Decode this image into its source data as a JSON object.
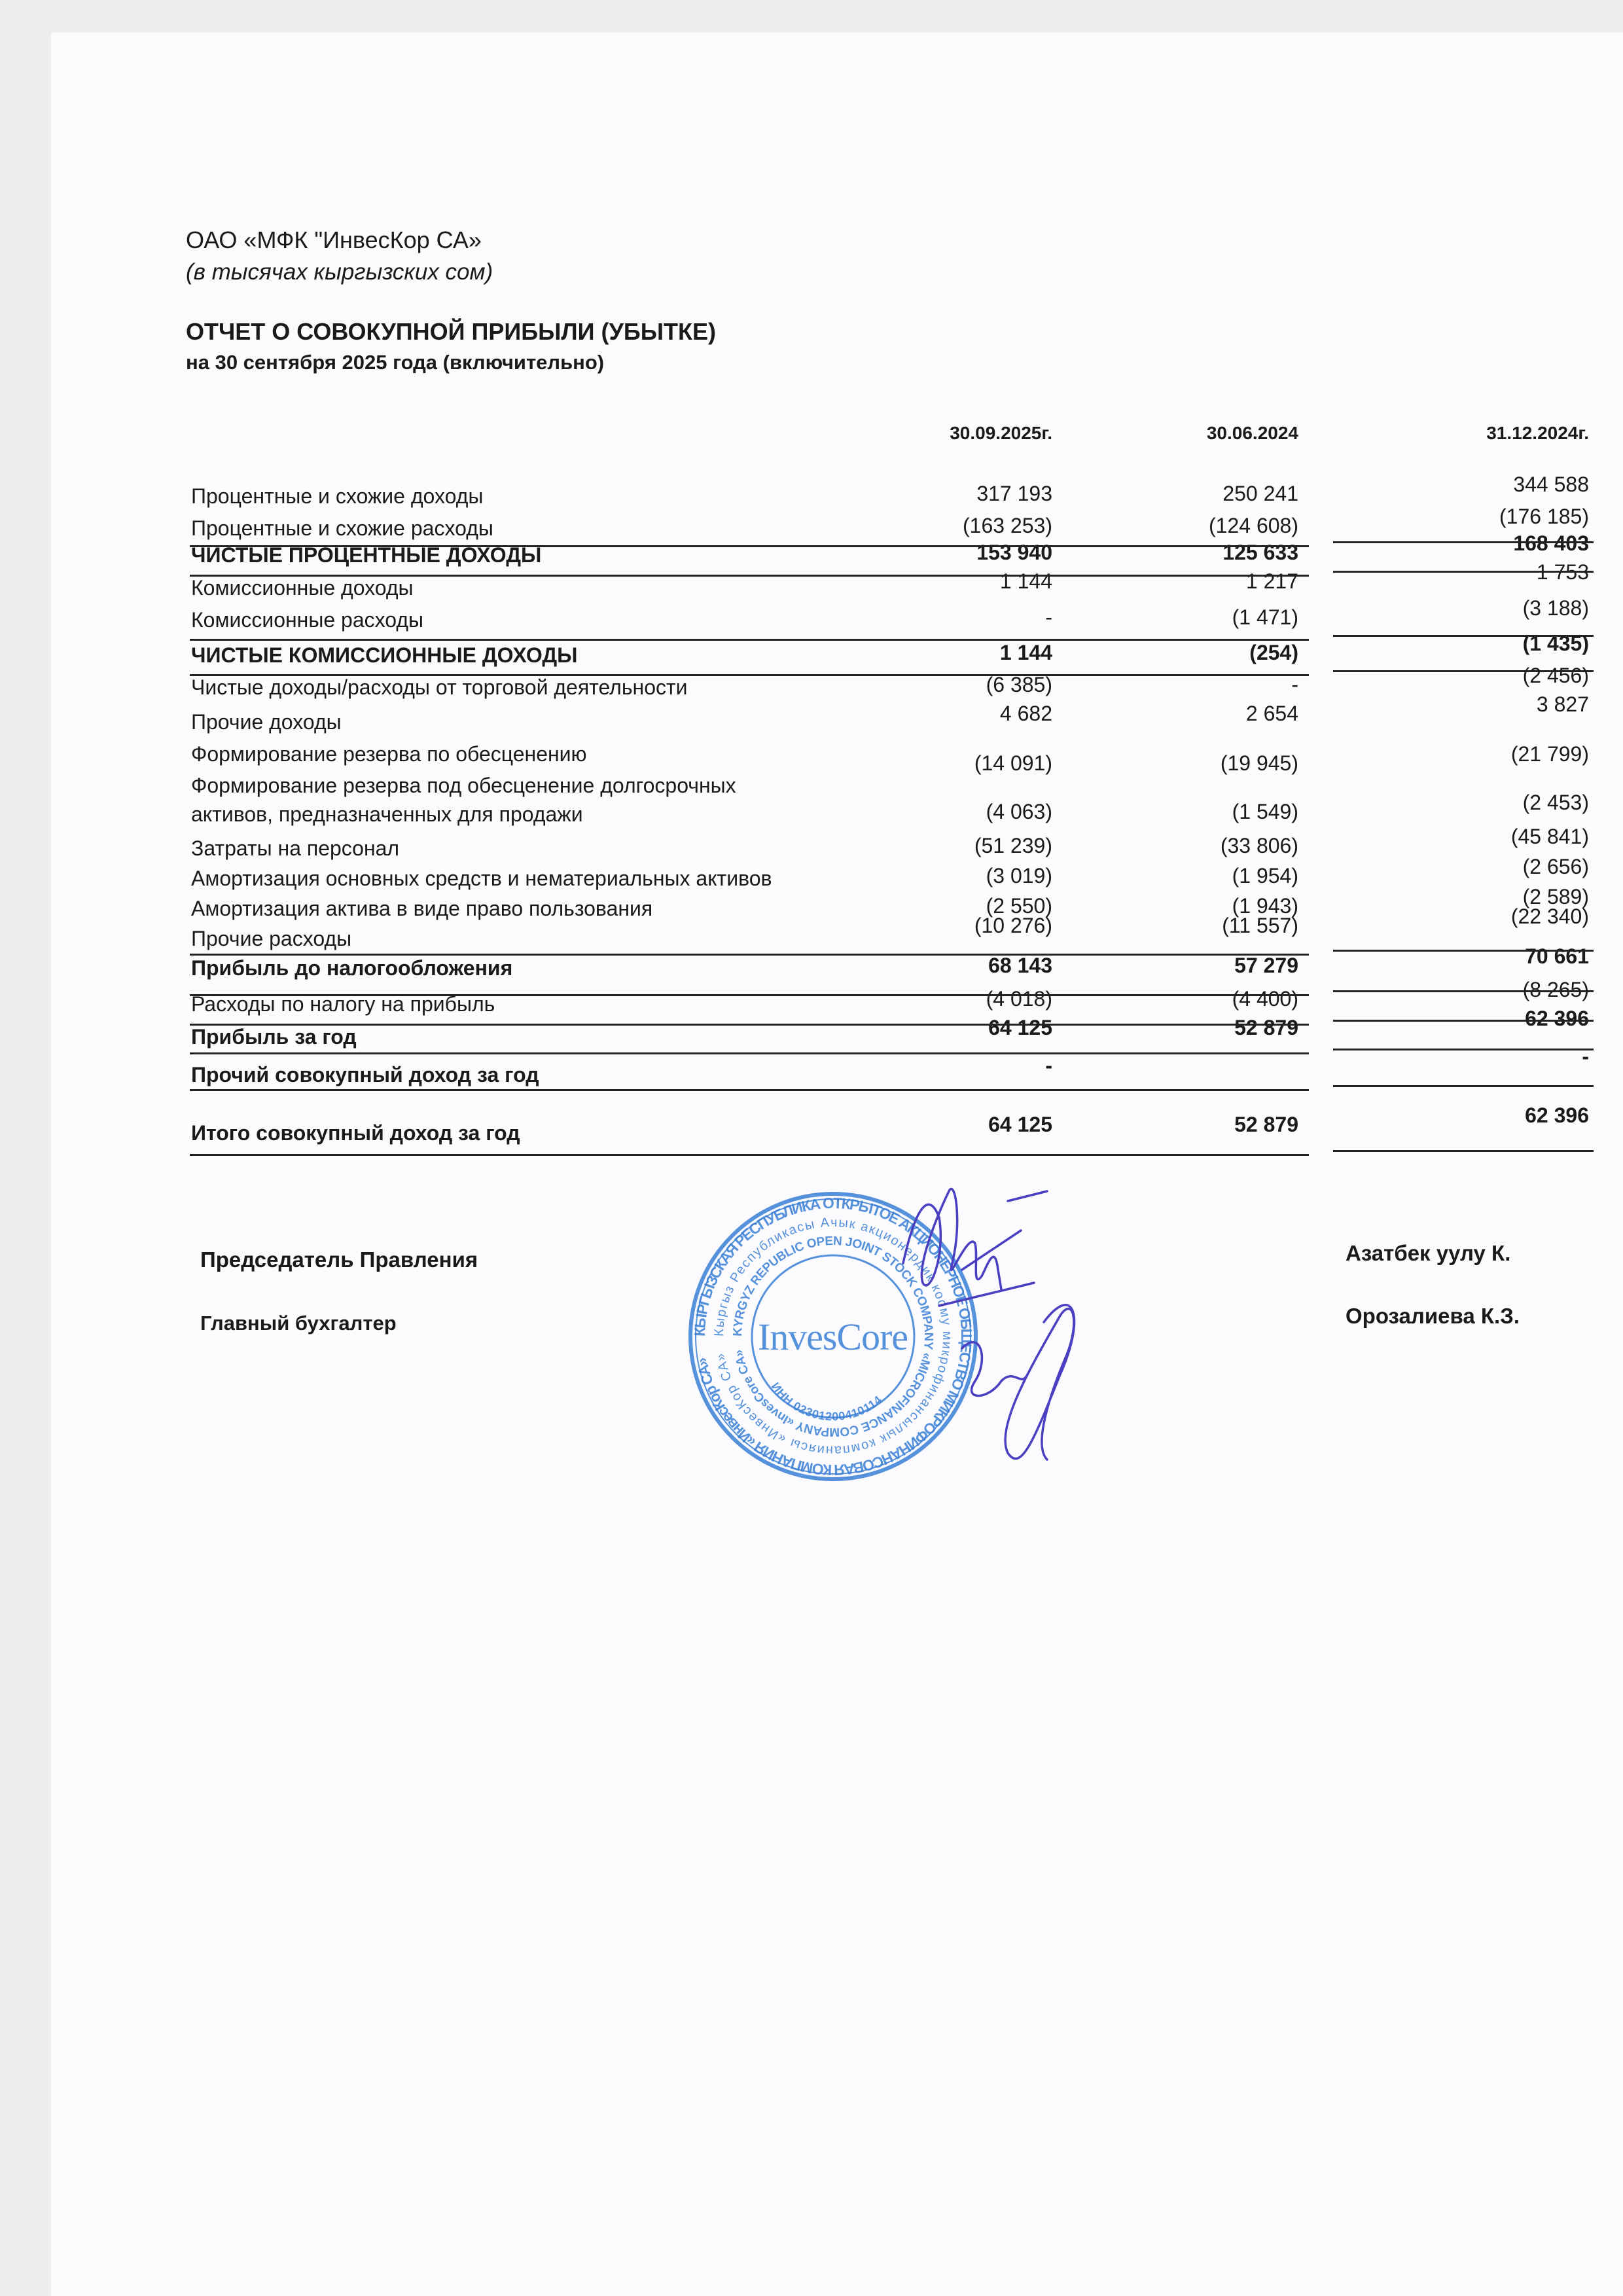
{
  "header": {
    "company": "ОАО  «МФК \"ИнвесКор СА»",
    "units": "(в тысячах кыргызских сом)",
    "report_title": "ОТЧЕТ О СОВОКУПНОЙ ПРИБЫЛИ (УБЫТКЕ)",
    "report_subtitle": "на  30 сентября  2025 года  (включительно)"
  },
  "table": {
    "columns": [
      "30.09.2025г.",
      "30.06.2024",
      "31.12.2024г."
    ],
    "rows": [
      {
        "label": "Процентные и схожие доходы",
        "values": [
          "317 193",
          "250 241",
          "344 588"
        ],
        "bold": false
      },
      {
        "label": "Процентные и схожие расходы",
        "values": [
          "(163 253)",
          "(124 608)",
          "(176 185)"
        ],
        "bold": false
      },
      {
        "label": "ЧИСТЫЕ ПРОЦЕНТНЫЕ ДОХОДЫ",
        "values": [
          "153 940",
          "125 633",
          "168 403"
        ],
        "bold": true
      },
      {
        "label": "Комиссионные доходы",
        "values": [
          "1 144",
          "1 217",
          "1 753"
        ],
        "bold": false
      },
      {
        "label": "Комиссионные расходы",
        "values": [
          "-",
          "(1 471)",
          "(3 188)"
        ],
        "bold": false
      },
      {
        "label": "ЧИСТЫЕ КОМИССИОННЫЕ  ДОХОДЫ",
        "values": [
          "1 144",
          "(254)",
          "(1 435)"
        ],
        "bold": true
      },
      {
        "label": "Чистые доходы/расходы от торговой деятельности",
        "values": [
          "(6 385)",
          "-",
          "(2 456)"
        ],
        "bold": false
      },
      {
        "label": "Прочие доходы",
        "values": [
          "4 682",
          "2 654",
          "3 827"
        ],
        "bold": false
      },
      {
        "label": "Формирование резерва по обесценению",
        "values": [
          "(14 091)",
          "(19 945)",
          "(21 799)"
        ],
        "bold": false
      },
      {
        "label": "Формирование резерва под обесценение  долгосрочных",
        "label2": "активов, предназначенных для продажи",
        "values": [
          "(4 063)",
          "(1 549)",
          "(2 453)"
        ],
        "bold": false
      },
      {
        "label": "Затраты на персонал",
        "values": [
          "(51 239)",
          "(33 806)",
          "(45 841)"
        ],
        "bold": false
      },
      {
        "label": "Амортизация основных средств и нематериальных активов",
        "values": [
          "(3 019)",
          "(1 954)",
          "(2 656)"
        ],
        "bold": false
      },
      {
        "label": "Амортизация актива в виде право пользования",
        "values": [
          "(2 550)",
          "(1 943)",
          "(2 589)"
        ],
        "bold": false
      },
      {
        "label": "Прочие расходы",
        "values": [
          "(10 276)",
          "(11 557)",
          "(22 340)"
        ],
        "bold": false
      },
      {
        "label": "Прибыль до налогообложения",
        "values": [
          "68 143",
          "57 279",
          "70 661"
        ],
        "bold": true
      },
      {
        "label": "Расходы по налогу на прибыль",
        "values": [
          "(4 018)",
          "(4 400)",
          "(8 265)"
        ],
        "bold": false
      },
      {
        "label": "Прибыль  за год",
        "values": [
          "64 125",
          "52 879",
          "62 396"
        ],
        "bold": true
      },
      {
        "label": "Прочий  совокупный  доход за год",
        "values": [
          "-",
          "",
          "-"
        ],
        "bold": true
      },
      {
        "label": "Итого совокупный  доход  за год",
        "values": [
          "64 125",
          "52 879",
          "62 396"
        ],
        "bold": true
      }
    ]
  },
  "signatures": {
    "chair_title": "Председатель Правления",
    "chair_name": "Азатбек уулу  К.",
    "accountant_title": "Главный  бухгалтер",
    "accountant_name": "Орозалиева К.З."
  },
  "stamp": {
    "logo": "InvesCore",
    "outer_ring": "КЫРГЫЗСКАЯ РЕСПУБЛИКА ОТКРЫТОЕ АКЦИОНЕРНОЕ ОБЩЕСТВО МИКРОФИНАНСОВАЯ КОМПАНИЯ «ИнвесКор СА»",
    "middle_ring": "Кыргыз Республикасы Ачык акционердик коому микрофинансылык компаниясы «ИнвесКор СА»",
    "inner_ring": "KYRGYZ REPUBLIC OPEN JOINT STOCK COMPANY «MICROFINANCE COMPANY «InvesCore CA»",
    "inn": "ИНН 02301200410114",
    "color": "#3a7fd6"
  },
  "signature_ink_color": "#4a3fc0"
}
